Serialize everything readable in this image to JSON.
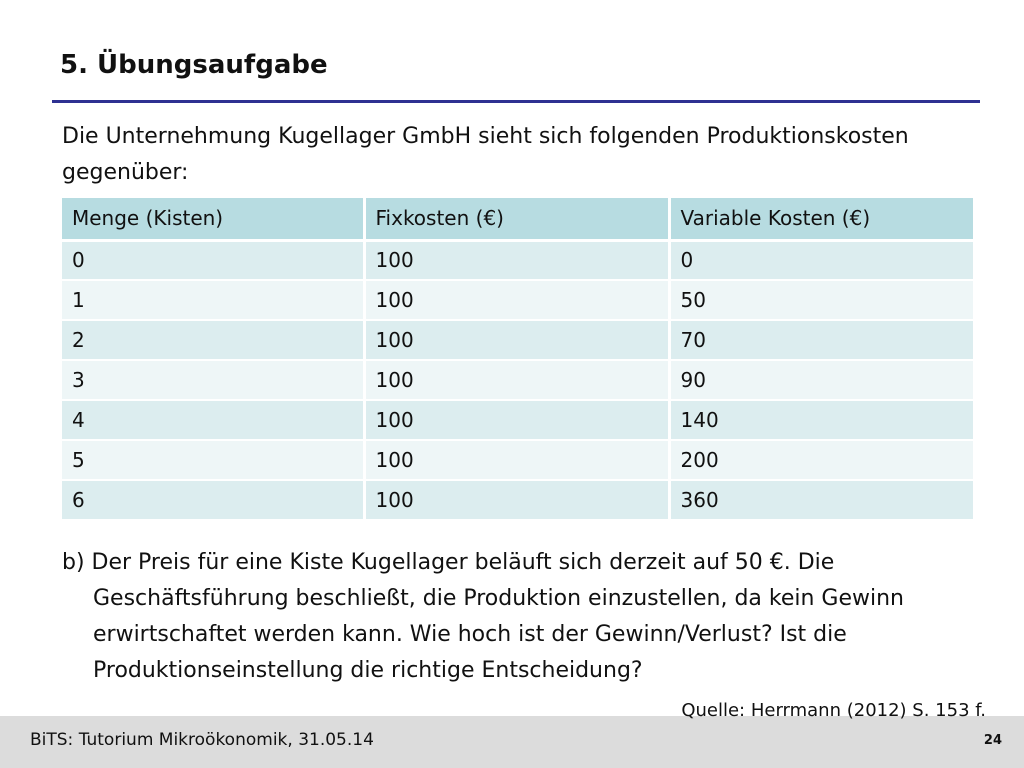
{
  "slide": {
    "title": "5. Übungsaufgabe",
    "intro": "Die Unternehmung Kugellager GmbH sieht sich folgenden Produktionskosten gegenüber:",
    "task": "b) Der Preis für eine Kiste Kugellager beläuft sich derzeit auf 50 €. Die Geschäftsführung beschließt, die Produktion einzustellen, da kein Gewinn erwirtschaftet werden kann. Wie hoch ist der Gewinn/Verlust? Ist die Produktionseinstellung die richtige Entscheidung?",
    "source": "Quelle: Herrmann (2012) S. 153 f."
  },
  "table": {
    "headers": [
      "Menge (Kisten)",
      "Fixkosten (€)",
      "Variable Kosten (€)"
    ],
    "rows": [
      [
        "0",
        "100",
        "0"
      ],
      [
        "1",
        "100",
        "50"
      ],
      [
        "2",
        "100",
        "70"
      ],
      [
        "3",
        "100",
        "90"
      ],
      [
        "4",
        "100",
        "140"
      ],
      [
        "5",
        "100",
        "200"
      ],
      [
        "6",
        "100",
        "360"
      ]
    ]
  },
  "footer": {
    "text": "BiTS: Tutorium Mikroökonomik, 31.05.14",
    "page_number": "24"
  },
  "colors": {
    "title_rule": "#2e3192",
    "table_header": "#b7dce1",
    "table_row_odd": "#dcedef",
    "table_row_even": "#eef6f7",
    "footer_band": "#dcdcdc"
  }
}
